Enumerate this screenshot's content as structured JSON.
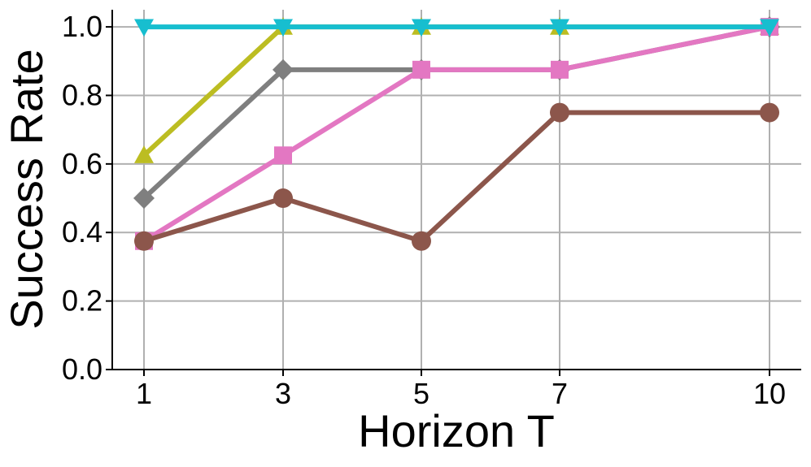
{
  "chart_data": {
    "type": "line",
    "xlabel": "Horizon T",
    "ylabel": "Success Rate",
    "x": [
      1,
      3,
      5,
      7,
      10
    ],
    "ylim": [
      0,
      1.05
    ],
    "y_ticks": [
      "0.0",
      "0.2",
      "0.4",
      "0.6",
      "0.8",
      "1.0"
    ],
    "x_ticks": [
      "1",
      "3",
      "5",
      "7",
      "10"
    ],
    "grid": true,
    "series": [
      {
        "color": "#bcbd22",
        "marker": "triangle-up",
        "values": [
          0.625,
          1.0,
          1.0,
          1.0,
          1.0
        ]
      },
      {
        "color": "#7f7f7f",
        "marker": "diamond",
        "values": [
          0.5,
          0.875,
          0.875,
          0.875,
          1.0
        ]
      },
      {
        "color": "#e377c2",
        "marker": "square",
        "values": [
          0.375,
          0.625,
          0.875,
          0.875,
          1.0
        ]
      },
      {
        "color": "#8c564b",
        "marker": "circle",
        "values": [
          0.375,
          0.5,
          0.375,
          0.75,
          0.75
        ]
      },
      {
        "color": "#17becf",
        "marker": "triangle-down",
        "values": [
          1.0,
          1.0,
          1.0,
          1.0,
          1.0
        ]
      }
    ]
  }
}
